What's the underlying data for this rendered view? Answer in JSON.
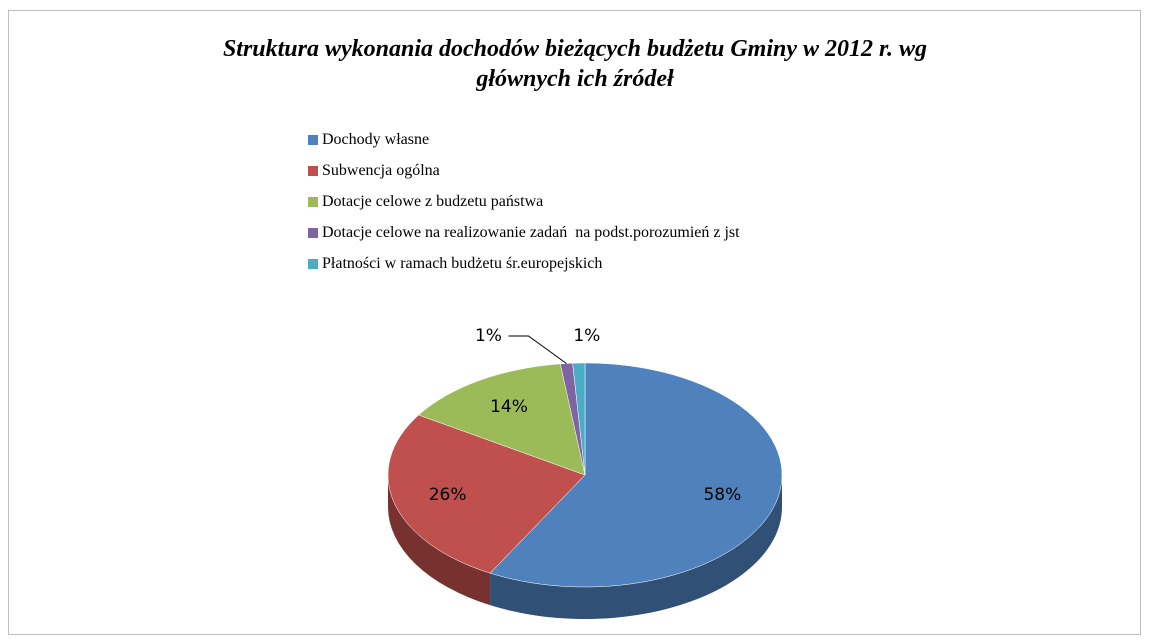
{
  "chart_data": {
    "type": "pie",
    "title": "Struktura wykonania dochodów bieżących budżetu Gminy w 2012 r. wg głównych ich źródeł",
    "categories": [
      "Dochody własne",
      "Subwencja ogólna",
      "Dotacje celowe z budzetu państwa",
      "Dotacje celowe na realizowanie zadań  na podst.porozumień z jst",
      "Płatności w ramach budżetu śr.europejskich"
    ],
    "values": [
      58,
      26,
      14,
      1,
      1
    ],
    "value_labels": [
      "58%",
      "26%",
      "14%",
      "1%",
      "1%"
    ],
    "colors": [
      "#4f81bd",
      "#c0504d",
      "#9bbb59",
      "#8064a2",
      "#4bacc6"
    ],
    "legend": "top"
  }
}
